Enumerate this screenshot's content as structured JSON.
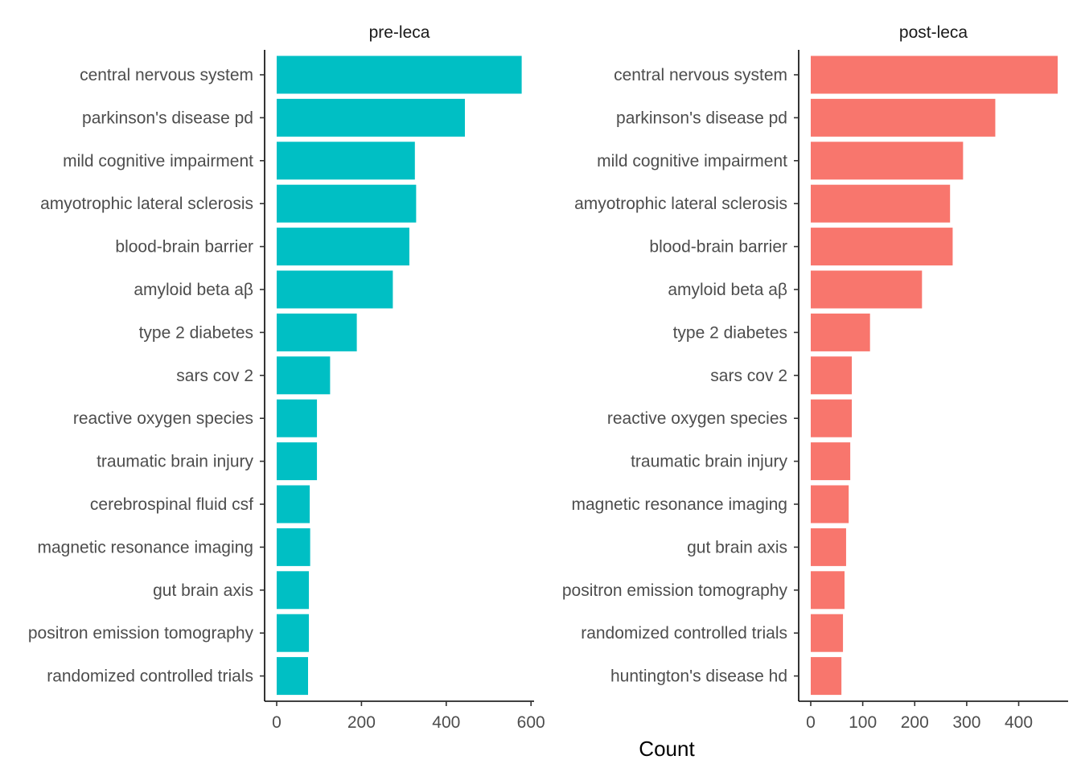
{
  "chart_data": {
    "type": "bar",
    "orientation": "horizontal",
    "xlabel": "Count",
    "ylabel": "",
    "grid": false,
    "legend": "none",
    "facets": [
      {
        "title": "pre-leca",
        "color": "#00BFC4",
        "xlim": [
          0,
          600
        ],
        "xticks": [
          0,
          200,
          400,
          600
        ],
        "categories": [
          "central nervous system",
          "parkinson's disease pd",
          "mild cognitive impairment",
          "amyotrophic lateral sclerosis",
          "blood-brain barrier",
          "amyloid beta aβ",
          "type 2 diabetes",
          "sars cov 2",
          "reactive oxygen species",
          "traumatic brain injury",
          "cerebrospinal fluid csf",
          "magnetic resonance imaging",
          "gut brain axis",
          "positron emission tomography",
          "randomized controlled trials"
        ],
        "values": [
          578,
          444,
          326,
          329,
          313,
          274,
          189,
          126,
          95,
          95,
          78,
          79,
          76,
          76,
          74
        ]
      },
      {
        "title": "post-leca",
        "color": "#F8766D",
        "xlim": [
          0,
          480
        ],
        "xticks": [
          0,
          100,
          200,
          300,
          400
        ],
        "categories": [
          "central nervous system",
          "parkinson's disease pd",
          "mild cognitive impairment",
          "amyotrophic lateral sclerosis",
          "blood-brain barrier",
          "amyloid beta aβ",
          "type 2 diabetes",
          "sars cov 2",
          "reactive oxygen species",
          "traumatic brain injury",
          "magnetic resonance imaging",
          "gut brain axis",
          "positron emission tomography",
          "randomized controlled trials",
          "huntington's disease hd"
        ],
        "values": [
          475,
          355,
          293,
          268,
          273,
          214,
          114,
          79,
          79,
          76,
          73,
          68,
          65,
          62,
          59
        ]
      }
    ]
  }
}
